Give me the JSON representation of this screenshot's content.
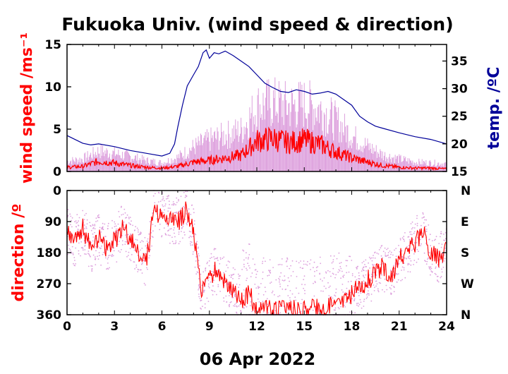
{
  "title": "Fukuoka Univ. (wind speed & direction)",
  "date_label": "06 Apr 2022",
  "colors": {
    "wind_mean": "#ff0000",
    "wind_gust": "#dda0dd",
    "temperature": "#000099",
    "axis": "#000000"
  },
  "chart_data": [
    {
      "type": "line",
      "panel": "top",
      "ylabel": "wind speed /ms⁻¹",
      "ylabel_right": "temp. /ºC",
      "x_ticks": [
        "0",
        "3",
        "6",
        "9",
        "12",
        "15",
        "18",
        "21",
        "24"
      ],
      "xlim": [
        0,
        24
      ],
      "ylim": [
        0,
        15
      ],
      "y_ticks": [
        "0",
        "5",
        "10",
        "15"
      ],
      "ylim_right": [
        15,
        38
      ],
      "y_ticks_right": [
        "15",
        "20",
        "25",
        "30",
        "35"
      ],
      "series": [
        {
          "name": "temp.",
          "axis": "right",
          "x": [
            0,
            0.5,
            1,
            1.5,
            2,
            3,
            4,
            5,
            6,
            6.5,
            6.8,
            7,
            7.3,
            7.6,
            8,
            8.3,
            8.6,
            8.8,
            9,
            9.3,
            9.6,
            10,
            10.5,
            11,
            11.5,
            12,
            12.5,
            13,
            13.5,
            14,
            14.5,
            15,
            15.5,
            16,
            16.5,
            17,
            17.5,
            18,
            18.5,
            19,
            19.5,
            20,
            21,
            22,
            23,
            24
          ],
          "y": [
            21.5,
            20.8,
            20.1,
            19.8,
            20,
            19.5,
            18.8,
            18.3,
            17.8,
            18.3,
            20,
            23,
            27,
            30.5,
            32.5,
            34,
            36.5,
            37,
            35.5,
            36.5,
            36.3,
            36.8,
            36,
            35,
            34,
            32.5,
            31,
            30.2,
            29.5,
            29.3,
            29.8,
            29.5,
            29,
            29.2,
            29.5,
            29,
            28,
            27,
            25,
            24,
            23.2,
            22.8,
            22,
            21.3,
            20.8,
            20
          ]
        },
        {
          "name": "wind speed",
          "axis": "left",
          "x": [
            0,
            1,
            2,
            3,
            4,
            5,
            6,
            7,
            8,
            9,
            10,
            11,
            12,
            13,
            14,
            15,
            16,
            17,
            18,
            19,
            20,
            21,
            22,
            23,
            24
          ],
          "y": [
            0.5,
            0.6,
            1.2,
            1.0,
            0.7,
            0.5,
            0.4,
            0.6,
            1.1,
            1.3,
            1.6,
            1.9,
            3.6,
            3.9,
            3.4,
            3.7,
            3.2,
            2.3,
            1.6,
            1.1,
            0.7,
            0.5,
            0.4,
            0.4,
            0.3
          ]
        },
        {
          "name": "gust",
          "axis": "left",
          "x": [
            0,
            1,
            2,
            3,
            4,
            5,
            6,
            7,
            8,
            9,
            10,
            11,
            12,
            13,
            14,
            15,
            16,
            17,
            18,
            19,
            20,
            21,
            22,
            23,
            24
          ],
          "y": [
            1.3,
            1.6,
            2.6,
            2.3,
            1.9,
            1.4,
            1.1,
            1.8,
            3.1,
            4.0,
            4.6,
            5.2,
            8.2,
            8.8,
            8.3,
            8.6,
            8.0,
            6.4,
            4.6,
            3.2,
            2.1,
            1.6,
            1.2,
            1.1,
            1.0
          ]
        }
      ]
    },
    {
      "type": "scatter",
      "panel": "bottom",
      "ylabel": "direction /º",
      "xlabel": "06 Apr 2022",
      "x_ticks": [
        "0",
        "3",
        "6",
        "9",
        "12",
        "15",
        "18",
        "21",
        "24"
      ],
      "xlim": [
        0,
        24
      ],
      "ylim": [
        0,
        360
      ],
      "y_inverted": true,
      "y_ticks": [
        "0",
        "90",
        "180",
        "270",
        "360"
      ],
      "y_ticks_right": [
        "N",
        "E",
        "S",
        "W",
        "N"
      ],
      "series": [
        {
          "name": "direction",
          "x": [
            0,
            0.5,
            1,
            1.5,
            2,
            2.5,
            3,
            3.5,
            4,
            4.5,
            5,
            5.5,
            6,
            6.5,
            7,
            7.5,
            8,
            8.5,
            9,
            9.5,
            10,
            10.5,
            11,
            11.5,
            12,
            13,
            14,
            15,
            16,
            17,
            17.5,
            18,
            18.5,
            19,
            19.5,
            20,
            20.5,
            21,
            21.5,
            22,
            22.5,
            23,
            23.5,
            24
          ],
          "y": [
            120,
            150,
            110,
            170,
            140,
            165,
            150,
            110,
            140,
            175,
            210,
            60,
            75,
            85,
            90,
            60,
            120,
            300,
            250,
            230,
            260,
            290,
            320,
            300,
            340,
            345,
            340,
            350,
            335,
            330,
            320,
            300,
            280,
            260,
            240,
            220,
            250,
            200,
            180,
            150,
            120,
            180,
            200,
            160
          ]
        }
      ]
    }
  ]
}
